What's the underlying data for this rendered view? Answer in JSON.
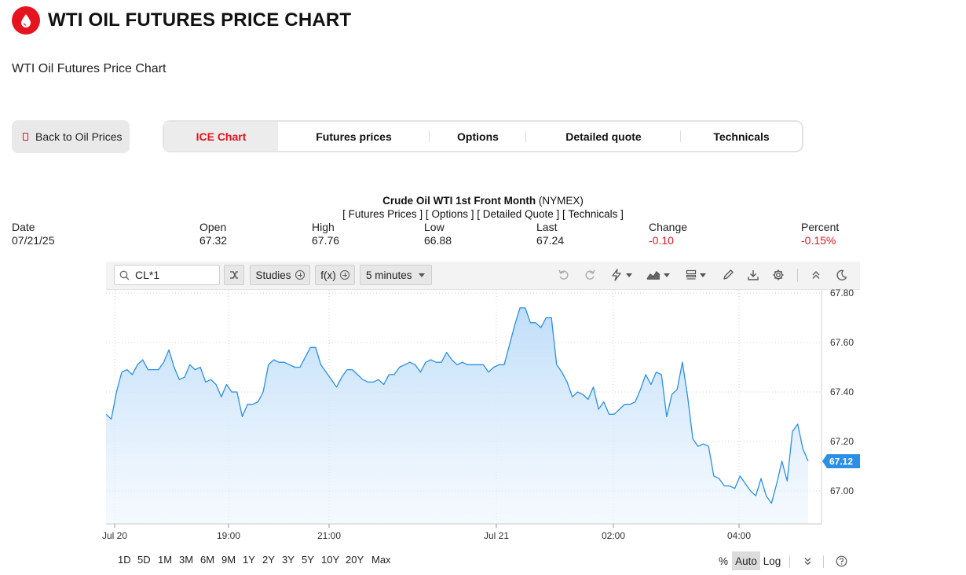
{
  "header": {
    "title": "WTI OIL FUTURES PRICE CHART",
    "subtitle": "WTI Oil Futures Price Chart",
    "logo_color": "#e5141f"
  },
  "back_button": {
    "label": "Back to Oil Prices"
  },
  "tabs": [
    {
      "label": "ICE Chart",
      "active": true
    },
    {
      "label": "Futures prices",
      "active": false
    },
    {
      "label": "Options",
      "active": false
    },
    {
      "label": "Detailed quote",
      "active": false
    },
    {
      "label": "Technicals",
      "active": false
    }
  ],
  "instrument": {
    "name": "Crude Oil WTI 1st Front Month",
    "exchange": "(NYMEX)",
    "links": [
      "Futures Prices",
      "Options",
      "Detailed Quote",
      "Technicals"
    ]
  },
  "quote": {
    "date_label": "Date",
    "date": "07/21/25",
    "open_label": "Open",
    "open": "67.32",
    "high_label": "High",
    "high": "67.76",
    "low_label": "Low",
    "low": "66.88",
    "last_label": "Last",
    "last": "67.24",
    "change_label": "Change",
    "change": "-0.10",
    "percent_label": "Percent",
    "percent": "-0.15%"
  },
  "toolbar": {
    "symbol": "CL*1",
    "studies_label": "Studies",
    "fx_label": "f(x)",
    "interval_label": "5 minutes",
    "icons": [
      "search-icon",
      "compare-icon",
      "undo-icon",
      "redo-icon",
      "lightning-icon",
      "chart-style-icon",
      "layout-icon",
      "pencil-icon",
      "download-icon",
      "gear-icon",
      "collapse-icon",
      "theme-icon"
    ]
  },
  "bottom_bar": {
    "ranges": [
      "1D",
      "5D",
      "1M",
      "3M",
      "6M",
      "9M",
      "1Y",
      "2Y",
      "3Y",
      "5Y",
      "10Y",
      "20Y",
      "Max"
    ],
    "scale_percent": "%",
    "scale_auto": "Auto",
    "scale_log": "Log",
    "active_scale": "Auto"
  },
  "chart_data": {
    "type": "area",
    "x_tick_labels": [
      "Jul 20",
      "19:00",
      "21:00",
      "Jul 21",
      "02:00",
      "04:00"
    ],
    "y_tick_labels": [
      "67.80",
      "67.60",
      "67.40",
      "67.20",
      "67.00"
    ],
    "ylim": [
      66.86,
      67.8
    ],
    "last_price_label": "67.12",
    "line_color": "#2b8fe6",
    "fill_color": "#cfe5fb",
    "grid": true,
    "series": [
      {
        "values": [
          67.31,
          67.29,
          67.4,
          67.48,
          67.49,
          67.47,
          67.51,
          67.53,
          67.49,
          67.49,
          67.49,
          67.52,
          67.57,
          67.5,
          67.45,
          67.46,
          67.51,
          67.49,
          67.5,
          67.44,
          67.45,
          67.43,
          67.38,
          67.43,
          67.4,
          67.4,
          67.3,
          67.35,
          67.35,
          67.36,
          67.4,
          67.51,
          67.53,
          67.52,
          67.52,
          67.51,
          67.5,
          67.5,
          67.54,
          67.58,
          67.58,
          67.51,
          67.48,
          67.45,
          67.42,
          67.46,
          67.49,
          67.49,
          67.47,
          67.45,
          67.44,
          67.44,
          67.45,
          67.43,
          67.47,
          67.47,
          67.5,
          67.51,
          67.52,
          67.51,
          67.48,
          67.52,
          67.53,
          67.52,
          67.52,
          67.56,
          67.53,
          67.51,
          67.52,
          67.51,
          67.51,
          67.51,
          67.51,
          67.48,
          67.5,
          67.51,
          67.51,
          67.59,
          67.67,
          67.74,
          67.74,
          67.68,
          67.68,
          67.66,
          67.7,
          67.7,
          67.51,
          67.48,
          67.44,
          67.38,
          67.4,
          67.39,
          67.37,
          67.42,
          67.33,
          67.36,
          67.31,
          67.31,
          67.33,
          67.35,
          67.35,
          67.36,
          67.41,
          67.47,
          67.43,
          67.48,
          67.47,
          67.3,
          67.39,
          67.41,
          67.52,
          67.38,
          67.21,
          67.18,
          67.19,
          67.18,
          67.06,
          67.05,
          67.02,
          67.02,
          67.01,
          67.06,
          67.03,
          67.0,
          66.98,
          67.05,
          66.98,
          66.95,
          67.03,
          67.12,
          67.04,
          67.24,
          67.27,
          67.17,
          67.12
        ]
      }
    ]
  }
}
